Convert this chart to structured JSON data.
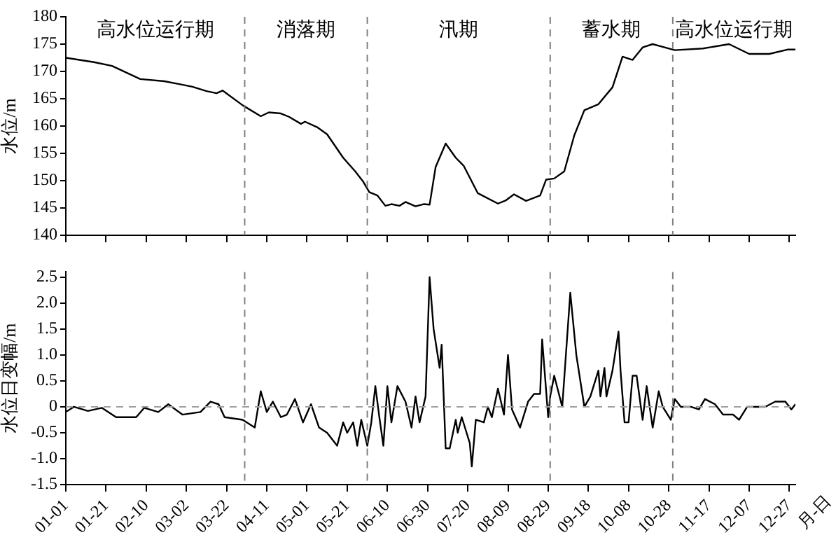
{
  "chart_data": [
    {
      "type": "line",
      "ylabel": "水位/m",
      "color": "#000000",
      "marker": "none",
      "line_style": "solid",
      "grid": false,
      "legend": false,
      "tick_labels": "y",
      "x": [
        "--01-01",
        "--01-15",
        "--01-24",
        "--02-07",
        "--02-19",
        "--02-26",
        "--03-05",
        "--03-12",
        "--03-17",
        "--03-20",
        "--03-30",
        "--04-08",
        "--04-12",
        "--04-18",
        "--04-22",
        "--04-28",
        "--04-30",
        "--05-06",
        "--05-11",
        "--05-19",
        "--05-25",
        "--05-29",
        "--06-01",
        "--06-05",
        "--06-09",
        "--06-12",
        "--06-16",
        "--06-19",
        "--06-24",
        "--06-28",
        "--07-01",
        "--07-04",
        "--07-09",
        "--07-14",
        "--07-18",
        "--07-25",
        "--08-04",
        "--08-08",
        "--08-12",
        "--08-18",
        "--08-25",
        "--08-28",
        "--09-01",
        "--09-06",
        "--09-11",
        "--09-16",
        "--09-23",
        "--09-30",
        "--10-05",
        "--10-10",
        "--10-15",
        "--10-20",
        "--10-24",
        "--10-31",
        "--11-14",
        "--11-27",
        "--12-07",
        "--12-17",
        "--12-26",
        "--12-30"
      ],
      "values": [
        172.5,
        171.7,
        171,
        168.6,
        168.2,
        167.7,
        167.2,
        166.4,
        166,
        166.5,
        163.8,
        161.8,
        162.5,
        162.3,
        161.7,
        160.4,
        160.8,
        159.8,
        158.5,
        154.2,
        151.7,
        149.8,
        147.9,
        147.3,
        145.4,
        145.7,
        145.4,
        146.1,
        145.3,
        145.7,
        145.6,
        152.5,
        156.8,
        154.2,
        152.7,
        147.7,
        145.8,
        146.4,
        147.5,
        146.3,
        147.3,
        150.2,
        150.4,
        151.7,
        158.3,
        162.9,
        164,
        167.1,
        172.7,
        172.1,
        174.4,
        175,
        174.6,
        173.9,
        174.2,
        175,
        173.2,
        173.2,
        174,
        174
      ],
      "xlim": [
        "--01-01",
        "--12-30"
      ],
      "xticks": [
        {
          "value": "--01-01",
          "label": null
        },
        {
          "value": "--01-21",
          "label": null
        },
        {
          "value": "--02-10",
          "label": null
        },
        {
          "value": "--03-02",
          "label": null
        },
        {
          "value": "--03-22",
          "label": null
        },
        {
          "value": "--04-11",
          "label": null
        },
        {
          "value": "--05-01",
          "label": null
        },
        {
          "value": "--05-21",
          "label": null
        },
        {
          "value": "--06-10",
          "label": null
        },
        {
          "value": "--06-30",
          "label": null
        },
        {
          "value": "--07-20",
          "label": null
        },
        {
          "value": "--08-09",
          "label": null
        },
        {
          "value": "--08-29",
          "label": null
        },
        {
          "value": "--09-18",
          "label": null
        },
        {
          "value": "--10-08",
          "label": null
        },
        {
          "value": "--10-28",
          "label": null
        },
        {
          "value": "--11-17",
          "label": null
        },
        {
          "value": "--12-07",
          "label": null
        },
        {
          "value": "--12-27",
          "label": null
        }
      ],
      "ylim": [
        140,
        180
      ],
      "yticks": [
        140,
        145,
        150,
        155,
        160,
        165,
        170,
        175,
        180
      ],
      "ref_lines": [
        {
          "axis": "x",
          "value": "--03-31",
          "color": "#808080",
          "line_style": "dashed"
        },
        {
          "axis": "x",
          "value": "--05-31",
          "color": "#808080",
          "line_style": "dashed"
        },
        {
          "axis": "x",
          "value": "--08-30",
          "color": "#808080",
          "line_style": "dashed"
        },
        {
          "axis": "x",
          "value": "--10-30",
          "color": "#808080",
          "line_style": "dashed"
        }
      ],
      "annotations": [
        "高水位运行期",
        "消落期",
        "汛期",
        "蓄水期",
        "高水位运行期"
      ]
    },
    {
      "type": "line",
      "ylabel": "水位日变幅/m",
      "xlabel": "月-日",
      "color": "#000000",
      "marker": "none",
      "line_style": "solid",
      "grid": false,
      "legend": false,
      "x": [
        "--01-01",
        "--01-05",
        "--01-12",
        "--01-19",
        "--01-26",
        "--02-05",
        "--02-09",
        "--02-16",
        "--02-21",
        "--02-28",
        "--03-09",
        "--03-14",
        "--03-18",
        "--03-21",
        "--03-30",
        "--04-05",
        "--04-08",
        "--04-11",
        "--04-14",
        "--04-18",
        "--04-21",
        "--04-25",
        "--04-29",
        "--05-03",
        "--05-07",
        "--05-11",
        "--05-16",
        "--05-19",
        "--05-21",
        "--05-24",
        "--05-26",
        "--05-28",
        "--05-31",
        "--06-02",
        "--06-04",
        "--06-06",
        "--06-08",
        "--06-10",
        "--06-12",
        "--06-15",
        "--06-19",
        "--06-22",
        "--06-24",
        "--06-26",
        "--06-29",
        "--07-01",
        "--07-03",
        "--07-06",
        "--07-07",
        "--07-09",
        "--07-11",
        "--07-14",
        "--07-15",
        "--07-17",
        "--07-21",
        "--07-22",
        "--07-24",
        "--07-28",
        "--07-30",
        "--08-01",
        "--08-04",
        "--08-07",
        "--08-09",
        "--08-11",
        "--08-15",
        "--08-19",
        "--08-22",
        "--08-25",
        "--08-26",
        "--08-29",
        "--08-30",
        "--09-01",
        "--09-05",
        "--09-09",
        "--09-12",
        "--09-16",
        "--09-19",
        "--09-23",
        "--09-24",
        "--09-26",
        "--09-27",
        "--09-30",
        "--10-03",
        "--10-04",
        "--10-06",
        "--10-08",
        "--10-10",
        "--10-12",
        "--10-15",
        "--10-17",
        "--10-20",
        "--10-23",
        "--10-25",
        "--10-29",
        "--10-31",
        "--11-03",
        "--11-08",
        "--11-12",
        "--11-15",
        "--11-20",
        "--11-24",
        "--11-29",
        "--12-02",
        "--12-06",
        "--12-15",
        "--12-20",
        "--12-25",
        "--12-28",
        "--12-30"
      ],
      "values": [
        -0.1,
        0,
        -0.08,
        -0.02,
        -0.2,
        -0.2,
        -0.02,
        -0.1,
        0.05,
        -0.15,
        -0.1,
        0.1,
        0.05,
        -0.2,
        -0.25,
        -0.4,
        0.3,
        -0.1,
        0.1,
        -0.2,
        -0.15,
        0.15,
        -0.3,
        0.05,
        -0.4,
        -0.5,
        -0.75,
        -0.3,
        -0.5,
        -0.3,
        -0.75,
        -0.25,
        -0.75,
        -0.3,
        0.4,
        -0.2,
        -0.75,
        0.4,
        -0.3,
        0.4,
        0.1,
        -0.4,
        0.2,
        -0.3,
        0.2,
        2.5,
        1.5,
        0.75,
        1.2,
        -0.8,
        -0.8,
        -0.25,
        -0.5,
        -0.2,
        -0.7,
        -1.15,
        -0.25,
        -0.3,
        0,
        -0.2,
        0.35,
        -0.15,
        1.0,
        -0.05,
        -0.4,
        0.1,
        0.25,
        0.25,
        1.3,
        -0.2,
        0.2,
        0.6,
        0,
        2.2,
        1.0,
        0,
        0.2,
        0.7,
        0.2,
        0.75,
        0.2,
        0.7,
        1.45,
        0.7,
        -0.3,
        -0.3,
        0.6,
        0.6,
        -0.25,
        0.4,
        -0.4,
        0.3,
        0,
        -0.25,
        0.15,
        0,
        0,
        -0.05,
        0.15,
        0.05,
        -0.15,
        -0.15,
        -0.25,
        0,
        0,
        0.1,
        0.1,
        -0.05,
        0.05
      ],
      "xlim": [
        "--01-01",
        "--12-30"
      ],
      "xticks": [
        {
          "value": "--01-01",
          "label": "01-01"
        },
        {
          "value": "--01-21",
          "label": "01-21"
        },
        {
          "value": "--02-10",
          "label": "02-10"
        },
        {
          "value": "--03-02",
          "label": "03-02"
        },
        {
          "value": "--03-22",
          "label": "03-22"
        },
        {
          "value": "--04-11",
          "label": "04-11"
        },
        {
          "value": "--05-01",
          "label": "05-01"
        },
        {
          "value": "--05-21",
          "label": "05-21"
        },
        {
          "value": "--06-10",
          "label": "06-10"
        },
        {
          "value": "--06-30",
          "label": "06-30"
        },
        {
          "value": "--07-20",
          "label": "07-20"
        },
        {
          "value": "--08-09",
          "label": "08-09"
        },
        {
          "value": "--08-29",
          "label": "08-29"
        },
        {
          "value": "--09-18",
          "label": "09-18"
        },
        {
          "value": "--10-08",
          "label": "10-08"
        },
        {
          "value": "--10-28",
          "label": "10-28"
        },
        {
          "value": "--11-17",
          "label": "11-17"
        },
        {
          "value": "--12-07",
          "label": "12-07"
        },
        {
          "value": "--12-27",
          "label": "12-27"
        }
      ],
      "ylim": [
        -1.5,
        2.6
      ],
      "yticks": [
        {
          "value": -1.5,
          "label": "-1.5"
        },
        {
          "value": -1,
          "label": "-1.0"
        },
        {
          "value": -0.5,
          "label": "-0.5"
        },
        0,
        {
          "value": 0.5,
          "label": "0.5"
        },
        {
          "value": 1,
          "label": "1.0"
        },
        {
          "value": 1.5,
          "label": "1.5"
        },
        {
          "value": 2,
          "label": "2.0"
        },
        {
          "value": 2.5,
          "label": "2.5"
        }
      ],
      "ref_lines": [
        {
          "axis": "x",
          "value": "--03-31",
          "color": "#808080",
          "line_style": "dashed"
        },
        {
          "axis": "x",
          "value": "--05-31",
          "color": "#808080",
          "line_style": "dashed"
        },
        {
          "axis": "x",
          "value": "--08-30",
          "color": "#808080",
          "line_style": "dashed"
        },
        {
          "axis": "x",
          "value": "--10-30",
          "color": "#808080",
          "line_style": "dashed"
        },
        {
          "axis": "y",
          "value": 0,
          "color": "#a0a0a0",
          "line_style": "dashed"
        }
      ]
    }
  ]
}
